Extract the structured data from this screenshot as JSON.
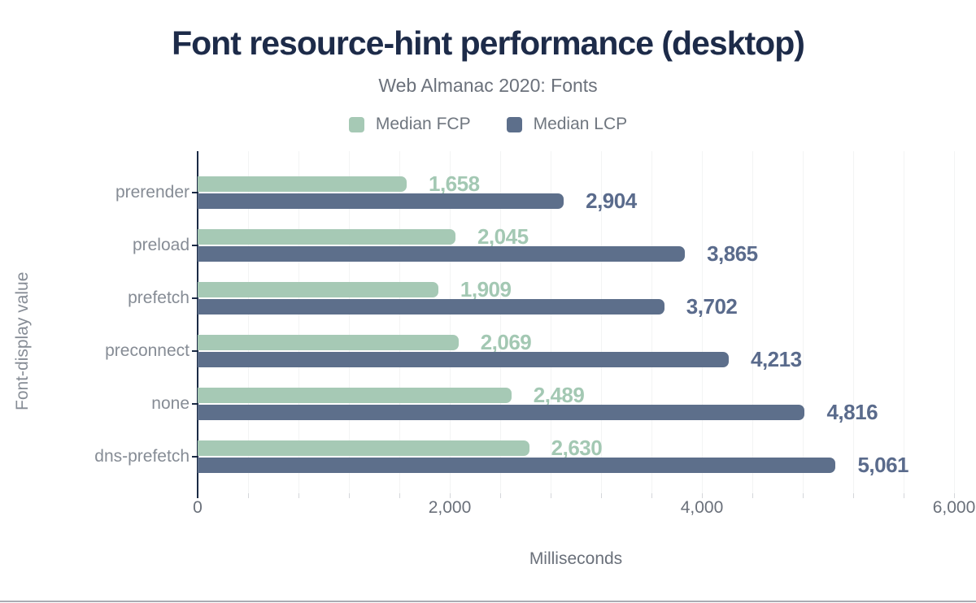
{
  "title": "Font resource-hint performance (desktop)",
  "subtitle": "Web Almanac 2020: Fonts",
  "legend": [
    {
      "label": "Median FCP",
      "color": "#a6c9b5"
    },
    {
      "label": "Median LCP",
      "color": "#5d6f8b"
    }
  ],
  "chart_data": {
    "type": "bar",
    "orientation": "horizontal",
    "title": "Font resource-hint performance (desktop)",
    "subtitle": "Web Almanac 2020: Fonts",
    "xlabel": "Milliseconds",
    "ylabel": "Font-display value",
    "xlim": [
      0,
      6000
    ],
    "grid": {
      "minor_step": 400,
      "show": true
    },
    "legend_position": "top-center",
    "categories": [
      "prerender",
      "preload",
      "prefetch",
      "preconnect",
      "none",
      "dns-prefetch"
    ],
    "series": [
      {
        "name": "Median FCP",
        "color": "#a6c9b5",
        "label_color": "#a3c8b3",
        "values": [
          1658,
          2045,
          1909,
          2069,
          2489,
          2630
        ],
        "labels": [
          "1,658",
          "2,045",
          "1,909",
          "2,069",
          "2,489",
          "2,630"
        ]
      },
      {
        "name": "Median LCP",
        "color": "#5d6f8b",
        "label_color": "#5a6b8c",
        "values": [
          2904,
          3865,
          3702,
          4213,
          4816,
          5061
        ],
        "labels": [
          "2,904",
          "3,865",
          "3,702",
          "4,213",
          "4,816",
          "5,061"
        ]
      }
    ],
    "xticks": [
      {
        "value": 0,
        "label": "0"
      },
      {
        "value": 2000,
        "label": "2,000"
      },
      {
        "value": 4000,
        "label": "4,000"
      },
      {
        "value": 6000,
        "label": "6,000"
      }
    ]
  },
  "colors": {
    "title": "#1d2b49",
    "subtitle": "#6b717b",
    "axis_line": "#1b2a45",
    "gridline": "#f3f4f4",
    "tick_label": "#6a707a",
    "category_label": "#868c95",
    "background": "#ffffff",
    "window_edge": "#aaacb3"
  }
}
